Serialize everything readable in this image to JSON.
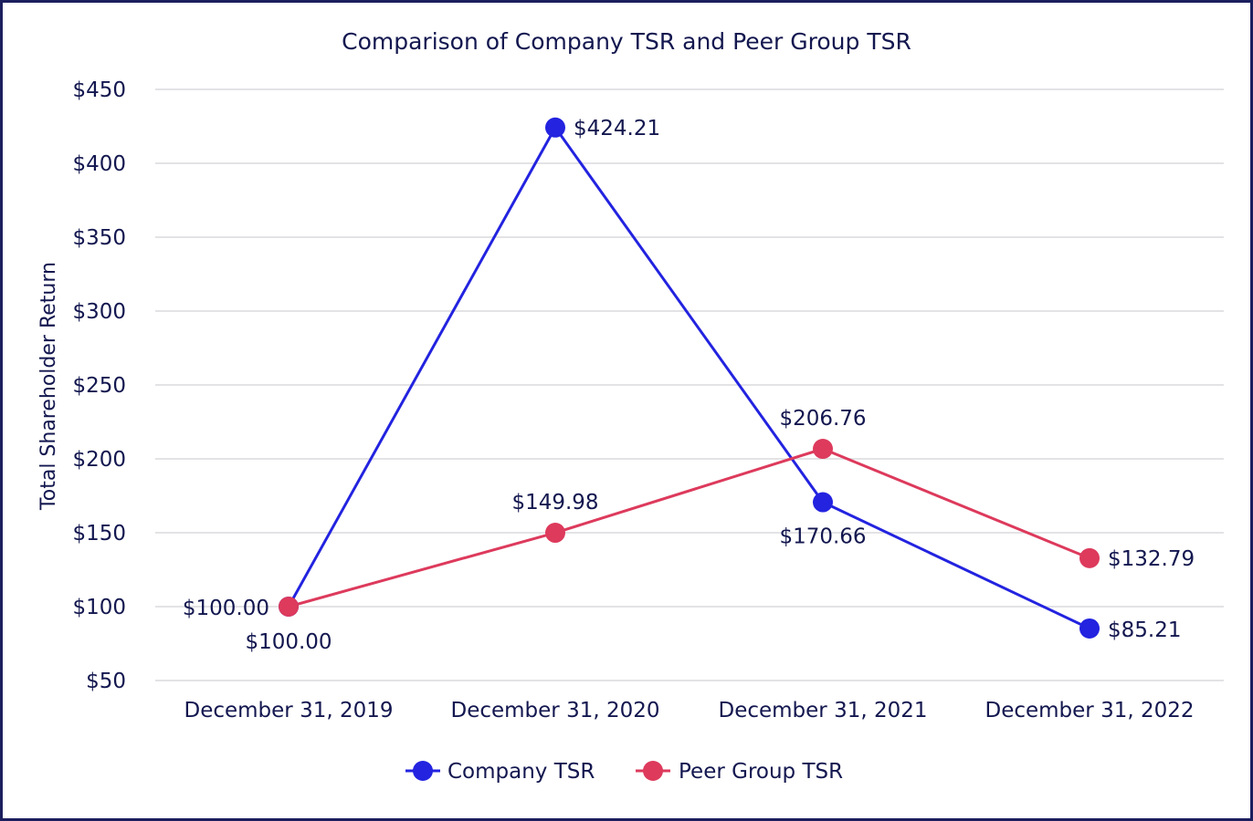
{
  "chart_data": {
    "type": "line",
    "title": "Comparison of Company TSR and Peer Group TSR",
    "xlabel": "",
    "ylabel": "Total Shareholder Return",
    "categories": [
      "December 31, 2019",
      "December 31, 2020",
      "December 31, 2021",
      "December 31, 2022"
    ],
    "ylim": [
      50,
      450
    ],
    "yticks": [
      50,
      100,
      150,
      200,
      250,
      300,
      350,
      400,
      450
    ],
    "ytick_labels": [
      "$50",
      "$100",
      "$150",
      "$200",
      "$250",
      "$300",
      "$350",
      "$400",
      "$450"
    ],
    "grid": true,
    "legend_position": "bottom",
    "series": [
      {
        "name": "Company TSR",
        "color": "#2323e0",
        "values": [
          100.0,
          424.21,
          170.66,
          85.21
        ],
        "labels": [
          "$100.00",
          "$424.21",
          "$170.66",
          "$85.21"
        ]
      },
      {
        "name": "Peer Group TSR",
        "color": "#dd3a5c",
        "values": [
          100.0,
          149.98,
          206.76,
          132.79
        ],
        "labels": [
          "$100.00",
          "$149.98",
          "$206.76",
          "$132.79"
        ]
      }
    ]
  }
}
